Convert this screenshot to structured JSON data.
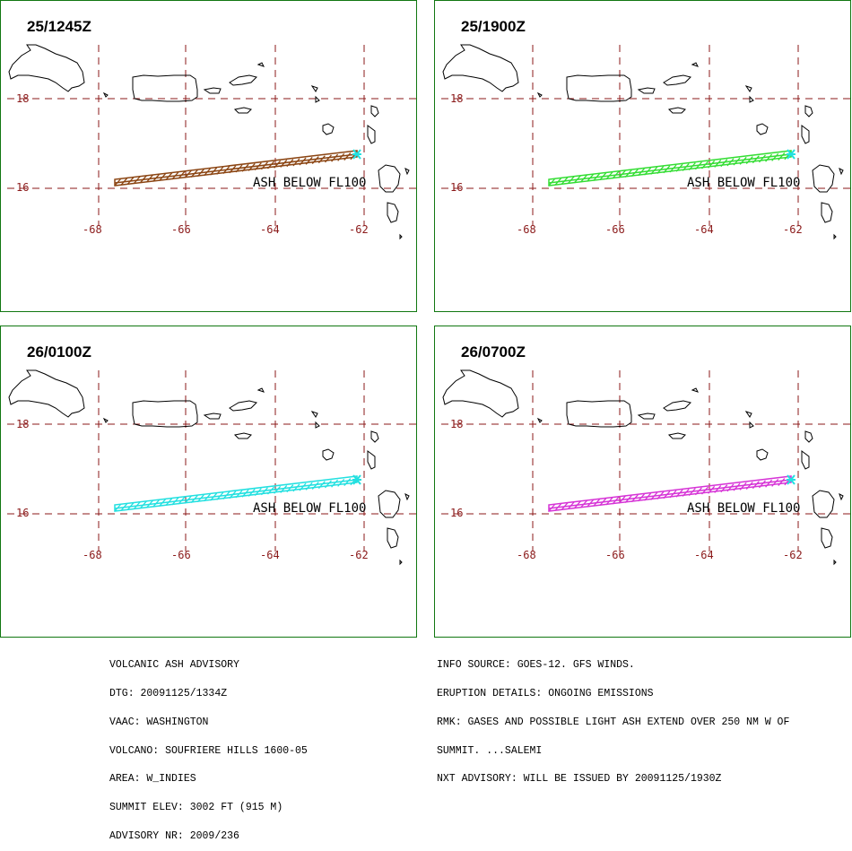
{
  "panels": [
    {
      "time": "25/1245Z",
      "plume_color": "#8b4513"
    },
    {
      "time": "25/1900Z",
      "plume_color": "#33dd33"
    },
    {
      "time": "26/0100Z",
      "plume_color": "#22e0e0"
    },
    {
      "time": "26/0700Z",
      "plume_color": "#d633d6"
    }
  ],
  "map": {
    "lat_labels": [
      "18",
      "16"
    ],
    "lon_labels": [
      "-68",
      "-66",
      "-64",
      "-62"
    ],
    "ash_label": "ASH BELOW FL100",
    "colors": {
      "frame": "#117711",
      "grid": "#8b1a1a",
      "label": "#8b1a1a",
      "vent": "#22e0e0"
    }
  },
  "advisory_left": [
    "VOLCANIC ASH ADVISORY",
    "DTG: 20091125/1334Z",
    "VAAC: WASHINGTON",
    "VOLCANO: SOUFRIERE HILLS 1600-05",
    "AREA: W_INDIES",
    "SUMMIT ELEV: 3002 FT (915 M)",
    "ADVISORY NR: 2009/236"
  ],
  "advisory_right": [
    "INFO SOURCE: GOES-12. GFS WINDS.",
    "ERUPTION DETAILS: ONGOING EMISSIONS",
    "RMK: GASES AND POSSIBLE LIGHT ASH EXTEND OVER 250 NM W OF",
    "SUMMIT. ...SALEMI",
    "NXT ADVISORY: WILL BE ISSUED BY 20091125/1930Z"
  ]
}
